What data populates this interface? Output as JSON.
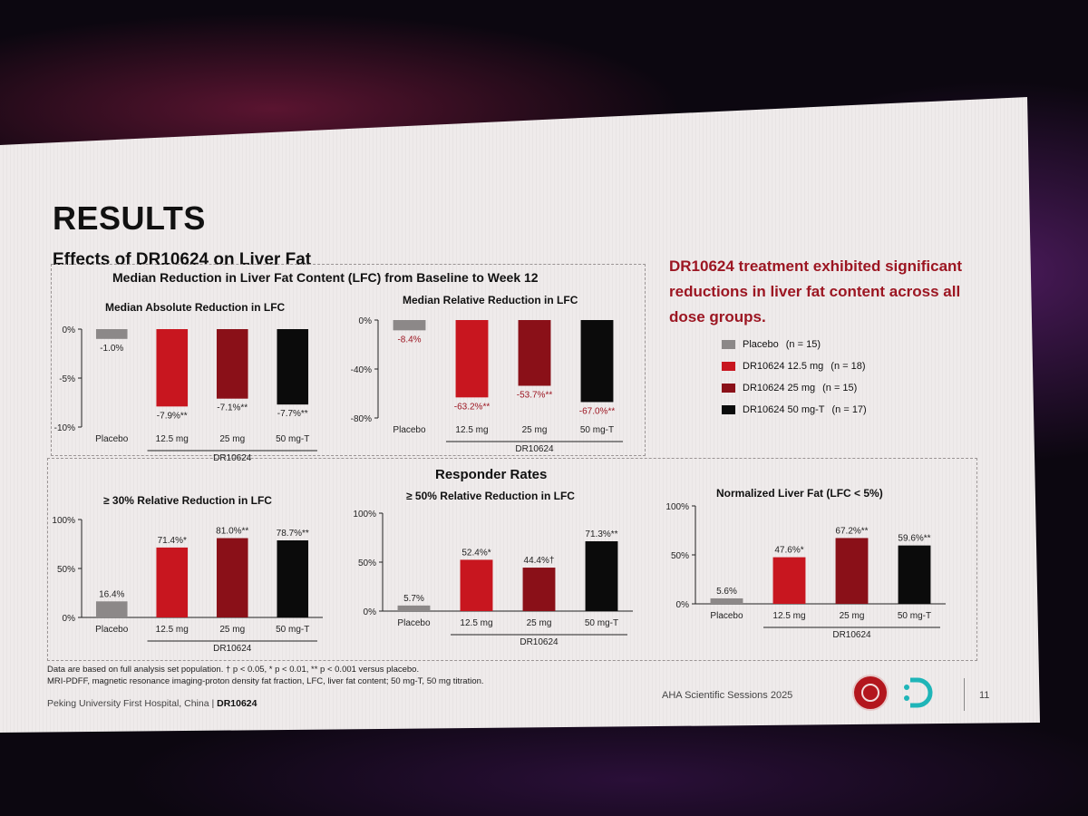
{
  "slide": {
    "title": "RESULTS",
    "subtitle": "Effects of DR10624 on Liver Fat",
    "highlight": "DR10624 treatment exhibited significant reductions in liver fat content across all dose groups.",
    "footnote_line1": "Data are based on full analysis set population. † p < 0.05, * p < 0.01, ** p < 0.001 versus placebo.",
    "footnote_line2": "MRI-PDFF, magnetic resonance imaging-proton density fat fraction, LFC, liver fat content; 50 mg-T, 50 mg titration.",
    "footer_left": "Peking University First Hospital, China | ",
    "footer_left_bold": "DR10624",
    "footer_right": "AHA Scientific Sessions 2025",
    "page_number": "11"
  },
  "colors": {
    "placebo": "#8c8888",
    "dose_12_5": "#c8161f",
    "dose_25": "#8a1018",
    "dose_50": "#0b0b0b",
    "label_red": "#9c1622"
  },
  "legend": [
    {
      "label": "Placebo",
      "n": "(n = 15)",
      "color": "#8c8888"
    },
    {
      "label": "DR10624 12.5 mg",
      "n": "(n = 18)",
      "color": "#c8161f"
    },
    {
      "label": "DR10624 25 mg",
      "n": "(n = 15)",
      "color": "#8a1018"
    },
    {
      "label": "DR10624 50 mg-T",
      "n": "(n = 17)",
      "color": "#0b0b0b"
    }
  ],
  "sections": {
    "top_title": "Median Reduction in Liver Fat Content (LFC) from Baseline to Week 12",
    "bottom_title": "Responder Rates"
  },
  "chart_data": [
    {
      "type": "bar",
      "title": "Median Absolute Reduction in LFC",
      "categories": [
        "Placebo",
        "12.5 mg",
        "25 mg",
        "50 mg-T"
      ],
      "group_label": "DR10624",
      "values": [
        -1.0,
        -7.9,
        -7.1,
        -7.7
      ],
      "labels": [
        "-1.0%",
        "-7.9%**",
        "-7.1%**",
        "-7.7%**"
      ],
      "yticks": [
        "0%",
        "-5%",
        "-10%"
      ],
      "ylim": [
        -10,
        0
      ]
    },
    {
      "type": "bar",
      "title": "Median Relative Reduction in LFC",
      "categories": [
        "Placebo",
        "12.5 mg",
        "25 mg",
        "50 mg-T"
      ],
      "group_label": "DR10624",
      "values": [
        -8.4,
        -63.2,
        -53.7,
        -67.0
      ],
      "labels": [
        "-8.4%",
        "-63.2%**",
        "-53.7%**",
        "-67.0%**"
      ],
      "yticks": [
        "0%",
        "-40%",
        "-80%"
      ],
      "ylim": [
        -80,
        0
      ]
    },
    {
      "type": "bar",
      "title": "≥ 30% Relative Reduction in LFC",
      "categories": [
        "Placebo",
        "12.5 mg",
        "25 mg",
        "50 mg-T"
      ],
      "group_label": "DR10624",
      "values": [
        16.4,
        71.4,
        81.0,
        78.7
      ],
      "labels": [
        "16.4%",
        "71.4%*",
        "81.0%**",
        "78.7%**"
      ],
      "yticks": [
        "100%",
        "50%",
        "0%"
      ],
      "ylim": [
        0,
        100
      ]
    },
    {
      "type": "bar",
      "title": "≥ 50% Relative Reduction in LFC",
      "categories": [
        "Placebo",
        "12.5 mg",
        "25 mg",
        "50 mg-T"
      ],
      "group_label": "DR10624",
      "values": [
        5.7,
        52.4,
        44.4,
        71.3
      ],
      "labels": [
        "5.7%",
        "52.4%*",
        "44.4%†",
        "71.3%**"
      ],
      "yticks": [
        "100%",
        "50%",
        "0%"
      ],
      "ylim": [
        0,
        100
      ]
    },
    {
      "type": "bar",
      "title": "Normalized Liver Fat (LFC < 5%)",
      "categories": [
        "Placebo",
        "12.5 mg",
        "25 mg",
        "50 mg-T"
      ],
      "group_label": "DR10624",
      "values": [
        5.6,
        47.6,
        67.2,
        59.6
      ],
      "labels": [
        "5.6%",
        "47.6%*",
        "67.2%**",
        "59.6%**"
      ],
      "yticks": [
        "100%",
        "50%",
        "0%"
      ],
      "ylim": [
        0,
        100
      ]
    }
  ]
}
